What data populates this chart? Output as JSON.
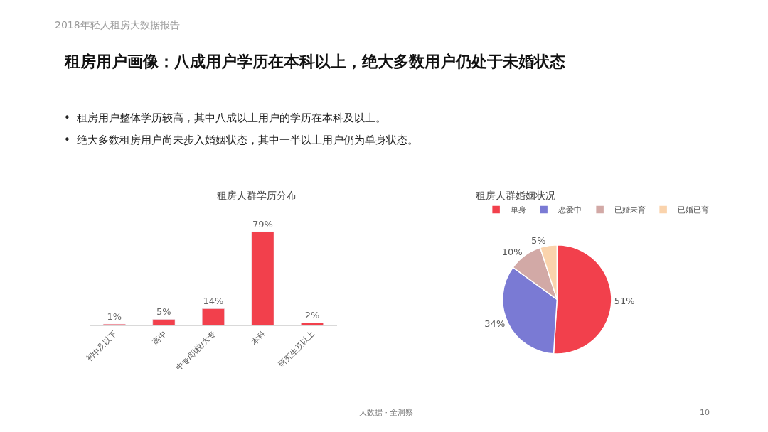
{
  "chart_data": [
    {
      "type": "other",
      "title": "租房用户画像：八成用户学历在本科以上，绝大多数用户仍处于未婚状态",
      "annotations": [
        "2018年轻人租房大数据报告",
        "•  租房用户整体学历较高，其中八成以上用户的学历在本科及以上。",
        "•  绝大多数租房用户尚未步入婚姻状态，其中一半以上用户仍为单身状态。",
        "大数据 · 全洞察",
        "10"
      ]
    },
    {
      "type": "bar",
      "title": "租房人群学历分布",
      "categories": [
        "初中及以下",
        "高中",
        "中专/职校/大专",
        "本科",
        "研究生及以上"
      ],
      "values": [
        1,
        5,
        14,
        79,
        2
      ],
      "value_labels": [
        "1%",
        "5%",
        "14%",
        "79%",
        "2%"
      ],
      "color": "#f2404c",
      "legend": false
    },
    {
      "type": "pie",
      "title": "租房人群婚姻状况",
      "categories": [
        "单身",
        "恋爱中",
        "已婚未育",
        "已婚已育"
      ],
      "values": [
        51,
        34,
        10,
        5
      ],
      "value_labels": [
        "51%",
        "34%",
        "10%",
        "5%"
      ],
      "colors": [
        "#f2404c",
        "#7a7ad4",
        "#d2a9a6",
        "#fad3ac"
      ],
      "legend": "top"
    }
  ]
}
